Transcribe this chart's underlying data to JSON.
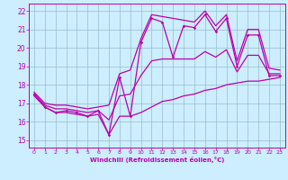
{
  "xlabel": "Windchill (Refroidissement éolien,°C)",
  "bg_color": "#cceeff",
  "line_color": "#bb00aa",
  "grid_color": "#99bbcc",
  "x_ticks": [
    0,
    1,
    2,
    3,
    4,
    5,
    6,
    7,
    8,
    9,
    10,
    11,
    12,
    13,
    14,
    15,
    16,
    17,
    18,
    19,
    20,
    21,
    22,
    23
  ],
  "ylim": [
    14.6,
    22.4
  ],
  "xlim": [
    -0.5,
    23.5
  ],
  "yticks": [
    15,
    16,
    17,
    18,
    19,
    20,
    21,
    22
  ],
  "data_line": [
    17.5,
    16.8,
    16.5,
    16.6,
    16.5,
    16.3,
    16.6,
    15.3,
    18.4,
    16.3,
    20.3,
    21.6,
    21.4,
    19.5,
    21.2,
    21.1,
    21.8,
    20.9,
    21.6,
    19.0,
    20.7,
    20.7,
    18.5,
    18.5
  ],
  "lower_envelope": [
    17.4,
    16.8,
    16.5,
    16.5,
    16.4,
    16.3,
    16.4,
    15.3,
    16.3,
    16.3,
    16.5,
    16.8,
    17.1,
    17.2,
    17.4,
    17.5,
    17.7,
    17.8,
    18.0,
    18.1,
    18.2,
    18.2,
    18.3,
    18.4
  ],
  "upper_envelope": [
    17.6,
    17.0,
    16.9,
    16.9,
    16.8,
    16.7,
    16.8,
    16.9,
    18.6,
    18.8,
    20.5,
    21.8,
    21.7,
    21.6,
    21.5,
    21.4,
    22.0,
    21.2,
    21.8,
    19.3,
    21.0,
    21.0,
    18.9,
    18.8
  ],
  "middle_line": [
    17.5,
    16.9,
    16.7,
    16.7,
    16.6,
    16.5,
    16.6,
    16.1,
    17.4,
    17.5,
    18.5,
    19.3,
    19.4,
    19.4,
    19.4,
    19.4,
    19.8,
    19.5,
    19.9,
    18.7,
    19.6,
    19.6,
    18.6,
    18.6
  ]
}
